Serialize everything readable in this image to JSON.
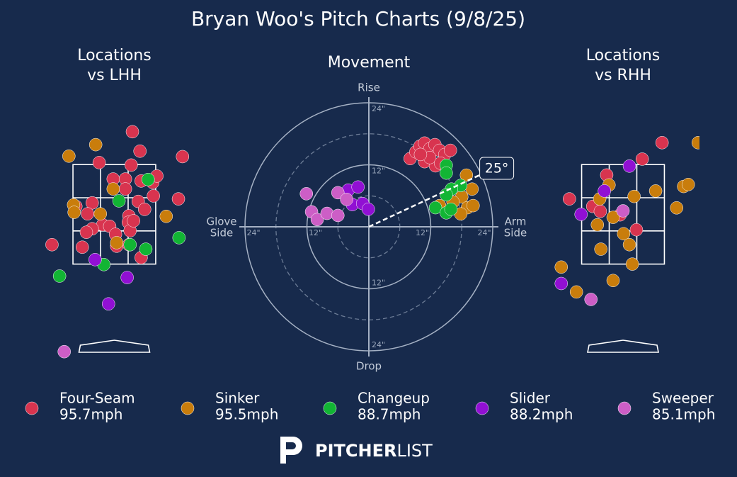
{
  "title": "Bryan Woo's Pitch Charts (9/8/25)",
  "logo": [
    "PITCHER",
    "LIST"
  ],
  "chart_data": [
    {
      "type": "scatter",
      "title": [
        "Locations",
        "vs LHH"
      ],
      "xlim": [
        -1.3,
        1.3
      ],
      "ylim": [
        -0.4,
        4.4
      ],
      "zone_x": [
        -0.71,
        0.71
      ],
      "zone_y": [
        1.5,
        3.5
      ],
      "series": [
        {
          "name": "Four-Seam",
          "velocity_label": "95.7mph",
          "color": "#d8344f",
          "x": [
            0.31,
            0.44,
            -0.26,
            0.29,
            1.17,
            -0.02,
            0.19,
            0.46,
            0.66,
            0.73,
            0.19,
            0.67,
            1.1,
            -0.38,
            0.41,
            -0.66,
            -0.46,
            0.52,
            0.25,
            0.24,
            0.27,
            -0.2,
            -0.08,
            -0.38,
            -0.48,
            0.02,
            0.33,
            -1.07,
            -0.55,
            0.04,
            0.25,
            0.46
          ],
          "y": [
            4.16,
            3.77,
            3.54,
            3.49,
            3.66,
            3.21,
            3.21,
            3.17,
            3.14,
            3.27,
            3.01,
            2.87,
            2.81,
            2.73,
            2.76,
            2.66,
            2.51,
            2.6,
            2.47,
            2.34,
            2.17,
            2.29,
            2.26,
            2.21,
            2.14,
            2.1,
            2.37,
            1.89,
            1.84,
            1.86,
            1.89,
            1.63
          ]
        },
        {
          "name": "Sinker",
          "velocity_label": "95.5mph",
          "color": "#c97d0c",
          "x": [
            -0.78,
            -0.32,
            -0.02,
            -0.7,
            -0.69,
            -0.24,
            0.89,
            0.04
          ],
          "y": [
            3.67,
            3.9,
            3.01,
            2.69,
            2.54,
            2.51,
            2.46,
            1.93
          ]
        },
        {
          "name": "Changeup",
          "velocity_label": "88.7mph",
          "color": "#12b534",
          "x": [
            0.58,
            0.08,
            0.27,
            0.54,
            1.11,
            -0.18,
            -0.94
          ],
          "y": [
            3.2,
            2.77,
            1.89,
            1.8,
            2.03,
            1.49,
            1.26
          ]
        },
        {
          "name": "Slider",
          "velocity_label": "88.2mph",
          "color": "#9110d3",
          "x": [
            -0.33,
            0.22,
            -0.1
          ],
          "y": [
            1.59,
            1.23,
            0.7
          ]
        },
        {
          "name": "Sweeper",
          "velocity_label": "85.1mph",
          "color": "#cc5ec6",
          "x": [
            -0.86
          ],
          "y": [
            -0.26
          ]
        }
      ]
    },
    {
      "type": "polar_scatter",
      "title": [
        "Movement"
      ],
      "rlim": [
        0,
        24
      ],
      "rticks": [
        {
          "value": 12,
          "label": "12\""
        },
        {
          "value": 24,
          "label": "24\""
        }
      ],
      "rminor": [
        6,
        18
      ],
      "directions": {
        "up": "Rise",
        "down": "Drop",
        "left": [
          "Glove",
          "Side"
        ],
        "right": [
          "Arm",
          "Side"
        ]
      },
      "arm_angle": {
        "value": 25,
        "label": "25°"
      },
      "series": [
        {
          "color": "#d8344f",
          "x": [
            8.0,
            9.1,
            9.9,
            10.8,
            11.8,
            12.8,
            13.7,
            14.7,
            15.8,
            10.8,
            12.9,
            11.8,
            10.0,
            13.9
          ],
          "y": [
            13.2,
            14.5,
            15.6,
            16.2,
            15.1,
            15.9,
            14.8,
            14.0,
            14.8,
            12.6,
            11.8,
            13.4,
            14.0,
            12.3
          ]
        },
        {
          "color": "#c97d0c",
          "x": [
            18.9,
            20.0,
            18.0,
            19.1,
            17.8,
            20.2,
            16.3,
            13.7
          ],
          "y": [
            10.0,
            7.3,
            5.8,
            3.7,
            2.5,
            4.1,
            4.8,
            4.1
          ]
        },
        {
          "color": "#12b534",
          "x": [
            15.0,
            15.0,
            17.8,
            16.0,
            15.0,
            12.9,
            15.0,
            15.9
          ],
          "y": [
            11.9,
            10.4,
            8.0,
            7.3,
            6.2,
            3.7,
            2.7,
            3.4
          ]
        },
        {
          "color": "#9110d3",
          "x": [
            -4.0,
            -2.1,
            -3.2,
            -1.2,
            -0.1
          ],
          "y": [
            7.1,
            7.7,
            4.3,
            4.5,
            3.4
          ]
        },
        {
          "color": "#cc5ec6",
          "x": [
            -12.1,
            -11.1,
            -10.0,
            -8.1,
            -6.0,
            -6.0,
            -4.3
          ],
          "y": [
            6.4,
            2.9,
            1.4,
            2.6,
            2.2,
            6.6,
            5.3
          ]
        }
      ]
    },
    {
      "type": "scatter",
      "title": [
        "Locations",
        "vs RHH"
      ],
      "xlim": [
        -1.3,
        1.3
      ],
      "ylim": [
        -0.4,
        4.4
      ],
      "zone_x": [
        -0.71,
        0.71
      ],
      "zone_y": [
        1.5,
        3.5
      ],
      "series": [
        {
          "color": "#d8344f",
          "x": [
            0.67,
            0.33,
            -0.28,
            -0.92,
            -0.52,
            -0.39,
            -0.05,
            0.23
          ],
          "y": [
            3.94,
            3.61,
            3.29,
            2.81,
            2.66,
            2.56,
            2.49,
            2.19
          ]
        },
        {
          "color": "#c97d0c",
          "x": [
            1.29,
            -0.24,
            -0.4,
            0.19,
            0.56,
            1.04,
            1.12,
            0.92,
            -0.44,
            -0.17,
            0.01,
            0.11,
            -0.38,
            0.16,
            -1.06,
            -0.8,
            -0.17
          ],
          "y": [
            3.94,
            3.09,
            2.81,
            2.86,
            2.97,
            3.06,
            3.1,
            2.63,
            2.29,
            2.44,
            2.11,
            1.89,
            1.8,
            1.5,
            1.44,
            0.94,
            1.17
          ]
        },
        {
          "color": "#9110d3",
          "x": [
            0.11,
            -0.32,
            -0.72,
            -1.06
          ],
          "y": [
            3.47,
            2.97,
            2.5,
            1.11
          ]
        },
        {
          "color": "#cc5ec6",
          "x": [
            0.0,
            -0.55
          ],
          "y": [
            2.57,
            0.79
          ]
        }
      ]
    }
  ]
}
